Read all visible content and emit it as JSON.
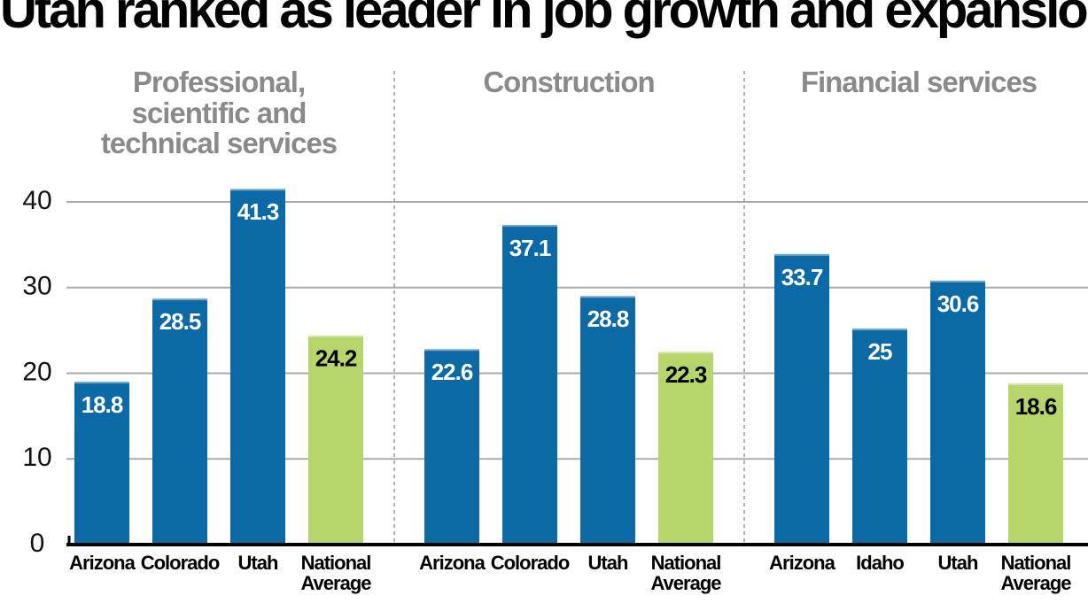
{
  "chart_data": {
    "type": "bar",
    "title": "Utah ranked as leader in job growth and expansion",
    "ylim": [
      0,
      42
    ],
    "yticks": [
      0,
      10,
      20,
      30,
      40
    ],
    "grid": true,
    "groups": [
      {
        "name": "Professional, scientific and technical services",
        "categories": [
          "Arizona",
          "Colorado",
          "Utah",
          "National Average"
        ],
        "values": [
          18.8,
          28.5,
          41.3,
          24.2
        ],
        "colors": [
          "#0b69a6",
          "#0b69a6",
          "#0b69a6",
          "#b6d56b"
        ]
      },
      {
        "name": "Construction",
        "categories": [
          "Arizona",
          "Colorado",
          "Utah",
          "National Average"
        ],
        "values": [
          22.6,
          37.1,
          28.8,
          22.3
        ],
        "colors": [
          "#0b69a6",
          "#0b69a6",
          "#0b69a6",
          "#b6d56b"
        ]
      },
      {
        "name": "Financial services",
        "categories": [
          "Arizona",
          "Idaho",
          "Utah",
          "National Average"
        ],
        "values": [
          33.7,
          25,
          30.6,
          18.6
        ],
        "colors": [
          "#0b69a6",
          "#0b69a6",
          "#0b69a6",
          "#b6d56b"
        ]
      }
    ]
  }
}
